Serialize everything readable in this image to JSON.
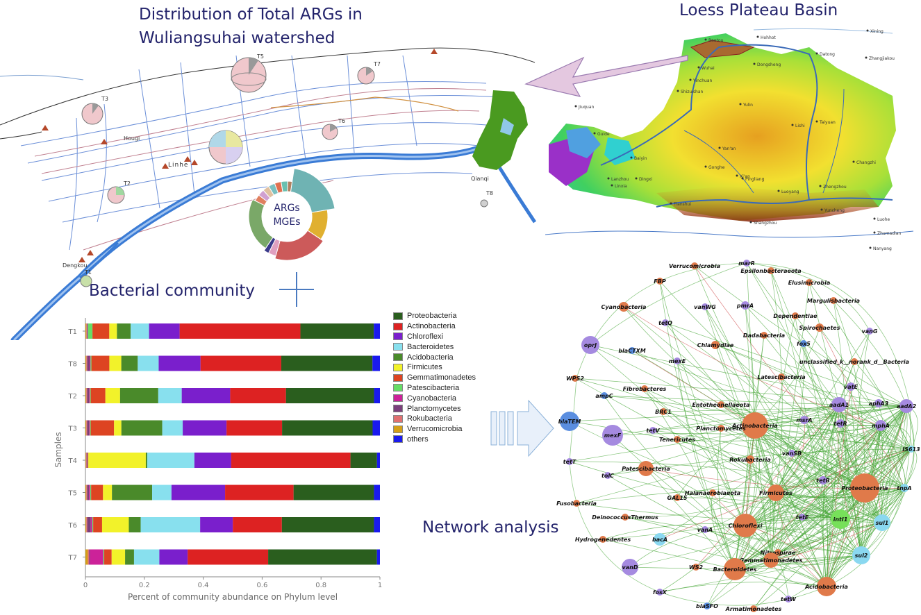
{
  "titles": {
    "distribution_line1": "Distribution of Total ARGs in",
    "distribution_line2": "Wuliangsuhai watershed",
    "loess": "Loess Plateau Basin",
    "bacterial": "Bacterial community",
    "network": "Network analysis",
    "donut_line1": "ARGs",
    "donut_line2": "MGEs"
  },
  "map_labels": {
    "sites": [
      "T1",
      "T2",
      "T3",
      "T5",
      "T6",
      "T7",
      "T8"
    ],
    "towns": [
      "Linhe",
      "Hougi",
      "Qianqi",
      "Dengkou"
    ]
  },
  "loess_cities": [
    "Yinchuan",
    "Wuhai",
    "Baotou",
    "Hohhot",
    "Datong",
    "Dongsheng",
    "Yulin",
    "Lishi",
    "Taiyuan",
    "Xining",
    "Lanzhou",
    "Baiyin",
    "Tianshui",
    "Xi'an",
    "Yan'an",
    "Luoyang",
    "Zhengzhou",
    "Pingliang",
    "Linxia",
    "Dingxi",
    "Gonghe",
    "Jiuquan",
    "Changzhi",
    "Yuncheng",
    "Shangzhou",
    "Nanyang",
    "Zhumadian",
    "Luohe",
    "Zhangjiakou",
    "Guide",
    "Shizuishan"
  ],
  "chart_data": {
    "type": "bar",
    "orientation": "horizontal-stacked",
    "title": "",
    "xlabel": "Percent of community abundance on Phylum level",
    "ylabel": "Samples",
    "xlim": [
      0,
      1
    ],
    "x_ticks": [
      "0",
      "0.2",
      "0.4",
      "0.6",
      "0.8",
      "1"
    ],
    "categories": [
      "T1",
      "T8",
      "T2",
      "T3",
      "T4",
      "T5",
      "T6",
      "T7"
    ],
    "legend_position": "right",
    "series": [
      {
        "name": "Verrucomicrobia",
        "color": "#d4a017",
        "values": [
          0.003,
          0.003,
          0.003,
          0.003,
          0.002,
          0.003,
          0.003,
          0.008
        ]
      },
      {
        "name": "Rokubacteria",
        "color": "#e07070",
        "values": [
          0.002,
          0.003,
          0.003,
          0.003,
          0.002,
          0.003,
          0.003,
          0.004
        ]
      },
      {
        "name": "Planctomycetes",
        "color": "#7b3f7b",
        "values": [
          0.002,
          0.008,
          0.006,
          0.006,
          0.002,
          0.006,
          0.012,
          0.003
        ]
      },
      {
        "name": "Cyanobacteria",
        "color": "#cc2299",
        "values": [
          0.001,
          0.003,
          0.003,
          0.003,
          0.001,
          0.004,
          0.005,
          0.045
        ]
      },
      {
        "name": "Patescibacteria",
        "color": "#66dd66",
        "values": [
          0.015,
          0.003,
          0.003,
          0.003,
          0.001,
          0.003,
          0.003,
          0.003
        ]
      },
      {
        "name": "Gemmatimonadetes",
        "color": "#dd4422",
        "values": [
          0.055,
          0.06,
          0.05,
          0.08,
          0.002,
          0.04,
          0.03,
          0.025
        ]
      },
      {
        "name": "Firmicutes",
        "color": "#f2f22a",
        "values": [
          0.025,
          0.04,
          0.05,
          0.025,
          0.195,
          0.03,
          0.09,
          0.045
        ]
      },
      {
        "name": "Acidobacteria",
        "color": "#4a8a2a",
        "values": [
          0.045,
          0.055,
          0.13,
          0.14,
          0.005,
          0.135,
          0.04,
          0.03
        ]
      },
      {
        "name": "Bacteroidetes",
        "color": "#88e0ee",
        "values": [
          0.06,
          0.07,
          0.08,
          0.07,
          0.16,
          0.065,
          0.2,
          0.085
        ]
      },
      {
        "name": "Chloroflexi",
        "color": "#7a1fcc",
        "values": [
          0.1,
          0.14,
          0.165,
          0.15,
          0.125,
          0.18,
          0.11,
          0.095
        ]
      },
      {
        "name": "Actinobacteria",
        "color": "#dd2222",
        "values": [
          0.395,
          0.27,
          0.19,
          0.19,
          0.405,
          0.23,
          0.165,
          0.27
        ]
      },
      {
        "name": "Proteobacteria",
        "color": "#2a5e1e",
        "values": [
          0.24,
          0.305,
          0.3,
          0.31,
          0.09,
          0.27,
          0.31,
          0.365
        ]
      },
      {
        "name": "others",
        "color": "#1a1aee",
        "values": [
          0.02,
          0.025,
          0.02,
          0.025,
          0.01,
          0.02,
          0.02,
          0.01
        ]
      }
    ],
    "legend_order": [
      "Proteobacteria",
      "Actinobacteria",
      "Chloroflexi",
      "Bacteroidetes",
      "Acidobacteria",
      "Firmicutes",
      "Gemmatimonadetes",
      "Patescibacteria",
      "Cyanobacteria",
      "Planctomycetes",
      "Rokubacteria",
      "Verrucomicrobia",
      "others"
    ]
  },
  "network": {
    "colors": {
      "phylum": "#e07a4a",
      "arg": "#a58ae0",
      "mge": "#8ad8f0",
      "intI1": "#77e05a",
      "bla": "#5a8ee0"
    },
    "nodes": [
      {
        "id": "Verrucomicrobia",
        "type": "phylum",
        "r": 5
      },
      {
        "id": "marR",
        "type": "arg",
        "r": 5
      },
      {
        "id": "Epsilonbacteraeota",
        "type": "phylum",
        "r": 5
      },
      {
        "id": "FBP",
        "type": "phylum",
        "r": 5
      },
      {
        "id": "Elusimicrobia",
        "type": "phylum",
        "r": 5
      },
      {
        "id": "Margulisbacteria",
        "type": "phylum",
        "r": 5
      },
      {
        "id": "Cyanobacteria",
        "type": "phylum",
        "r": 7
      },
      {
        "id": "vanWG",
        "type": "arg",
        "r": 5
      },
      {
        "id": "pmrA",
        "type": "arg",
        "r": 6
      },
      {
        "id": "Dependentiae",
        "type": "phylum",
        "r": 5
      },
      {
        "id": "tetQ",
        "type": "arg",
        "r": 5
      },
      {
        "id": "Spirochaetes",
        "type": "phylum",
        "r": 6
      },
      {
        "id": "vanG",
        "type": "arg",
        "r": 5
      },
      {
        "id": "Dadabacteria",
        "type": "phylum",
        "r": 5
      },
      {
        "id": "Chlamydiae",
        "type": "phylum",
        "r": 6
      },
      {
        "id": "oprJ",
        "type": "arg",
        "r": 13
      },
      {
        "id": "blaCTXM",
        "type": "bla",
        "r": 5
      },
      {
        "id": "fox5",
        "type": "bla",
        "r": 5
      },
      {
        "id": "mexE",
        "type": "arg",
        "r": 5
      },
      {
        "id": "unclassified_k__norank_d__Bacteria",
        "type": "phylum",
        "r": 5
      },
      {
        "id": "WPS2",
        "type": "phylum",
        "r": 5
      },
      {
        "id": "Latescibacteria",
        "type": "phylum",
        "r": 5
      },
      {
        "id": "vatE",
        "type": "arg",
        "r": 6
      },
      {
        "id": "Fibrobacteres",
        "type": "phylum",
        "r": 5
      },
      {
        "id": "ampC",
        "type": "bla",
        "r": 5
      },
      {
        "id": "BRC1",
        "type": "phylum",
        "r": 5
      },
      {
        "id": "Entotheonellaeota",
        "type": "phylum",
        "r": 5
      },
      {
        "id": "aadA1",
        "type": "arg",
        "r": 11
      },
      {
        "id": "aphA3",
        "type": "arg",
        "r": 6
      },
      {
        "id": "aadA2",
        "type": "arg",
        "r": 10
      },
      {
        "id": "blaTEM",
        "type": "bla",
        "r": 14
      },
      {
        "id": "Actinobacteria",
        "type": "phylum",
        "r": 19
      },
      {
        "id": "msrA",
        "type": "arg",
        "r": 6
      },
      {
        "id": "Planctomycetes",
        "type": "phylum",
        "r": 5
      },
      {
        "id": "mexF",
        "type": "arg",
        "r": 15
      },
      {
        "id": "tetV",
        "type": "arg",
        "r": 5
      },
      {
        "id": "Tenericutes",
        "type": "phylum",
        "r": 5
      },
      {
        "id": "tetR",
        "type": "arg",
        "r": 6
      },
      {
        "id": "mphA",
        "type": "arg",
        "r": 8
      },
      {
        "id": "IS613",
        "type": "mge",
        "r": 5
      },
      {
        "id": "tetT",
        "type": "arg",
        "r": 5
      },
      {
        "id": "vanSB",
        "type": "arg",
        "r": 5
      },
      {
        "id": "Rokubacteria",
        "type": "phylum",
        "r": 6
      },
      {
        "id": "Patescibacteria",
        "type": "phylum",
        "r": 11
      },
      {
        "id": "tolC",
        "type": "arg",
        "r": 5
      },
      {
        "id": "tetB",
        "type": "arg",
        "r": 6
      },
      {
        "id": "Proteobacteria",
        "type": "phylum",
        "r": 21
      },
      {
        "id": "tnpA",
        "type": "mge",
        "r": 6
      },
      {
        "id": "Halanaerobiaeota",
        "type": "phylum",
        "r": 5
      },
      {
        "id": "Firmicutes",
        "type": "phylum",
        "r": 12
      },
      {
        "id": "Fusobacteria",
        "type": "phylum",
        "r": 5
      },
      {
        "id": "GAL15",
        "type": "phylum",
        "r": 5
      },
      {
        "id": "DeinococcusThermus",
        "type": "phylum",
        "r": 5
      },
      {
        "id": "intI1",
        "type": "intI1",
        "r": 14
      },
      {
        "id": "sul1",
        "type": "mge",
        "r": 12
      },
      {
        "id": "tetE",
        "type": "arg",
        "r": 5
      },
      {
        "id": "Chloroflexi",
        "type": "phylum",
        "r": 17
      },
      {
        "id": "vanA",
        "type": "arg",
        "r": 5
      },
      {
        "id": "Hydrogenedentes",
        "type": "phylum",
        "r": 5
      },
      {
        "id": "bacA",
        "type": "mge",
        "r": 9
      },
      {
        "id": "Nitrospirae",
        "type": "phylum",
        "r": 5
      },
      {
        "id": "sul2",
        "type": "mge",
        "r": 13
      },
      {
        "id": "Gemmatimonadetes",
        "type": "phylum",
        "r": 11
      },
      {
        "id": "vanD",
        "type": "arg",
        "r": 12
      },
      {
        "id": "WS2",
        "type": "phylum",
        "r": 5
      },
      {
        "id": "Bacteroidetes",
        "type": "phylum",
        "r": 16
      },
      {
        "id": "Acidobacteria",
        "type": "phylum",
        "r": 14
      },
      {
        "id": "fosX",
        "type": "arg",
        "r": 5
      },
      {
        "id": "tetW",
        "type": "arg",
        "r": 5
      },
      {
        "id": "blaSFO",
        "type": "bla",
        "r": 5
      },
      {
        "id": "Armatimonadetes",
        "type": "phylum",
        "r": 5
      }
    ]
  },
  "donut": {
    "inner": [
      {
        "value": 20,
        "color": "#6fb3b3"
      },
      {
        "value": 12,
        "color": "#e0b030"
      },
      {
        "value": 20,
        "color": "#cc5a5a"
      },
      {
        "value": 3,
        "color": "#e0a0c0"
      },
      {
        "value": 2,
        "color": "#3a3a8a"
      },
      {
        "value": 23,
        "color": "#7aa868"
      },
      {
        "value": 3,
        "color": "#e08060"
      },
      {
        "value": 3,
        "color": "#d0a0d0"
      },
      {
        "value": 3,
        "color": "#e0c0a0"
      },
      {
        "value": 3,
        "color": "#7ac0c0"
      },
      {
        "value": 3,
        "color": "#e07050"
      },
      {
        "value": 3,
        "color": "#6ac0b0"
      },
      {
        "value": 2,
        "color": "#b08060"
      }
    ]
  }
}
